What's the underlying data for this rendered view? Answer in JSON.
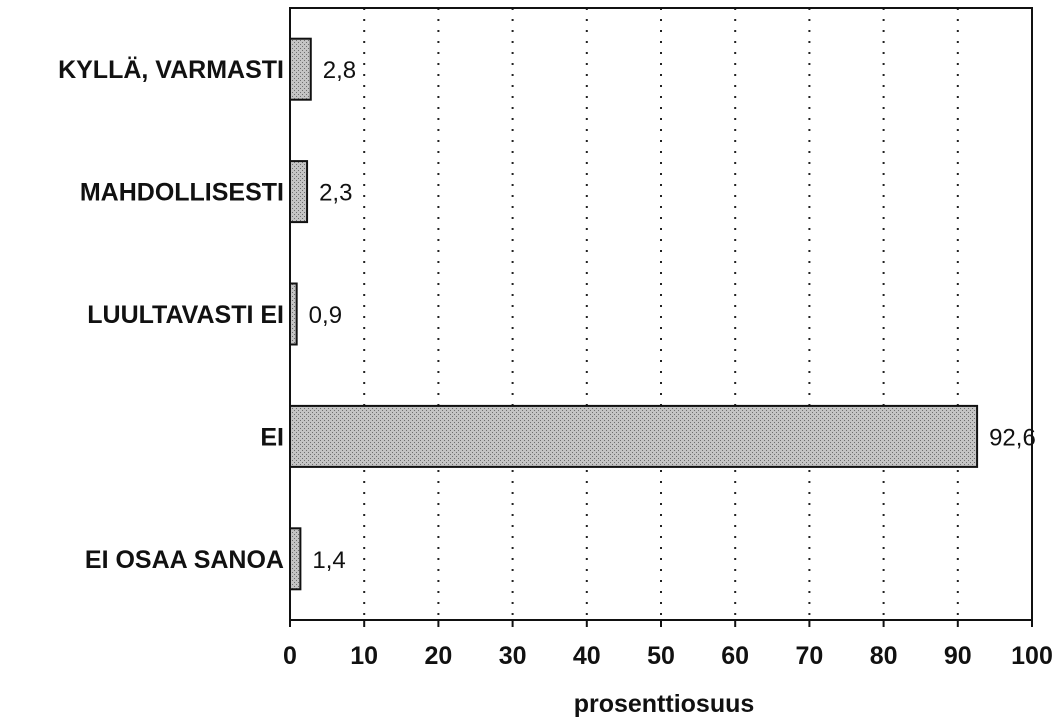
{
  "chart_data": {
    "type": "bar",
    "orientation": "horizontal",
    "categories": [
      "KYLLÄ, VARMASTI",
      "MAHDOLLISESTI",
      "LUULTAVASTI EI",
      "EI",
      "EI OSAA SANOA"
    ],
    "values": [
      2.8,
      2.3,
      0.9,
      92.6,
      1.4
    ],
    "value_labels": [
      "2,8",
      "2,3",
      "0,9",
      "92,6",
      "1,4"
    ],
    "xlabel": "prosenttiosuus",
    "xlim": [
      0,
      100
    ],
    "xticks": [
      0,
      10,
      20,
      30,
      40,
      50,
      60,
      70,
      80,
      90,
      100
    ],
    "xtick_labels": [
      "0",
      "10",
      "20",
      "30",
      "40",
      "50",
      "60",
      "70",
      "80",
      "90",
      "100"
    ],
    "grid": "vertical dotted",
    "bar_color": "#b8b8b8"
  }
}
